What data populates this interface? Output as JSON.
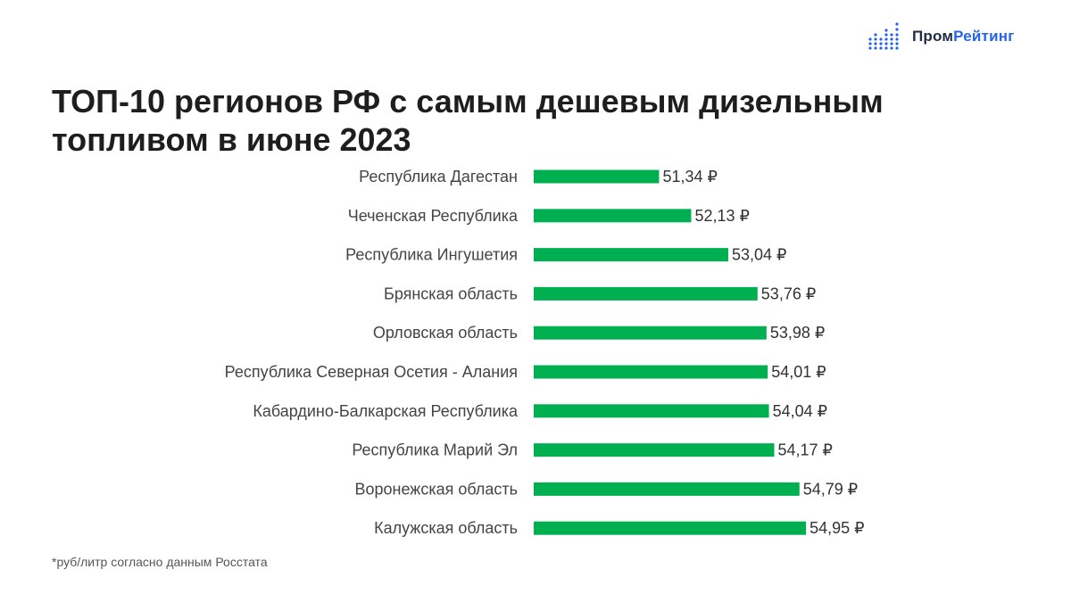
{
  "brand": {
    "part1": "Пром",
    "part2": "Рейтинг",
    "accent_dark": "#1f2a44",
    "accent_blue": "#2563eb"
  },
  "title": "ТОП-10 регионов РФ с самым дешевым дизельным топливом в июне 2023",
  "footnote": "*руб/литр согласно данным Росстата",
  "chart_data": {
    "type": "bar",
    "orientation": "horizontal",
    "title": "ТОП-10 регионов РФ с самым дешевым дизельным топливом в июне 2023",
    "xlabel": "",
    "ylabel": "",
    "unit": "₽",
    "bar_color": "#00b050",
    "categories": [
      "Республика Дагестан",
      "Чеченская Республика",
      "Республика Ингушетия",
      "Брянская область",
      "Орловская область",
      "Республика Северная Осетия - Алания",
      "Кабардино-Балкарская Республика",
      "Республика Марий Эл",
      "Воронежская область",
      "Калужская область"
    ],
    "values": [
      51.34,
      52.13,
      53.04,
      53.76,
      53.98,
      54.01,
      54.04,
      54.17,
      54.79,
      54.95
    ],
    "value_labels": [
      "51,34 ₽",
      "52,13 ₽",
      "53,04 ₽",
      "53,76 ₽",
      "53,98 ₽",
      "54,01 ₽",
      "54,04 ₽",
      "54,17 ₽",
      "54,79 ₽",
      "54,95 ₽"
    ]
  }
}
